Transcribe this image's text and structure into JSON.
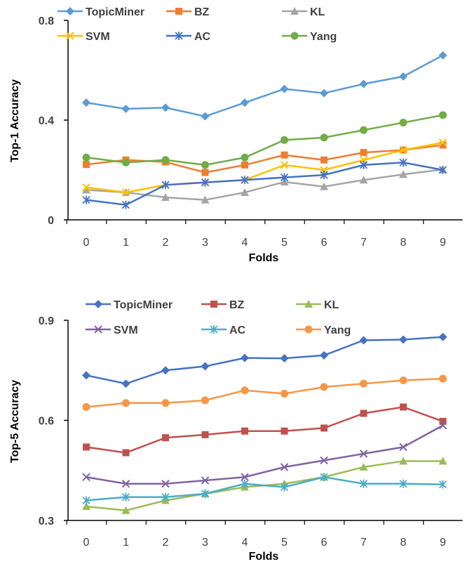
{
  "chart_data": [
    {
      "type": "line",
      "title": "",
      "xlabel": "Folds",
      "ylabel": "Top-1 Accuracy",
      "ylim": [
        0,
        0.8
      ],
      "yticks": [
        "0",
        "0.4",
        "0.8"
      ],
      "x": [
        0,
        1,
        2,
        3,
        4,
        5,
        6,
        7,
        8,
        9
      ],
      "legend": "top",
      "series": [
        {
          "name": "TopicMiner",
          "color": "#5B9BD5",
          "marker": "diamond",
          "values": [
            0.47,
            0.445,
            0.45,
            0.415,
            0.47,
            0.525,
            0.508,
            0.545,
            0.575,
            0.66
          ]
        },
        {
          "name": "BZ",
          "color": "#ED7D31",
          "marker": "square",
          "values": [
            0.222,
            0.24,
            0.232,
            0.19,
            0.22,
            0.26,
            0.24,
            0.27,
            0.28,
            0.3
          ]
        },
        {
          "name": "KL",
          "color": "#A5A5A5",
          "marker": "triangle",
          "values": [
            0.12,
            0.11,
            0.09,
            0.08,
            0.11,
            0.152,
            0.133,
            0.16,
            0.182,
            0.202
          ]
        },
        {
          "name": "SVM",
          "color": "#FFC000",
          "marker": "x",
          "values": [
            0.13,
            0.11,
            0.14,
            0.15,
            0.16,
            0.22,
            0.2,
            0.24,
            0.28,
            0.31
          ]
        },
        {
          "name": "AC",
          "color": "#4472C4",
          "marker": "star",
          "values": [
            0.08,
            0.06,
            0.14,
            0.15,
            0.16,
            0.17,
            0.18,
            0.22,
            0.23,
            0.2
          ]
        },
        {
          "name": "Yang",
          "color": "#70AD47",
          "marker": "circle",
          "values": [
            0.25,
            0.23,
            0.24,
            0.22,
            0.25,
            0.32,
            0.33,
            0.36,
            0.39,
            0.42
          ]
        }
      ]
    },
    {
      "type": "line",
      "title": "",
      "xlabel": "Folds",
      "ylabel": "Top-5 Accuracy",
      "ylim": [
        0.3,
        0.9
      ],
      "yticks": [
        "0.3",
        "0.6",
        "0.9"
      ],
      "x": [
        0,
        1,
        2,
        3,
        4,
        5,
        6,
        7,
        8,
        9
      ],
      "legend": "top",
      "series": [
        {
          "name": "TopicMiner",
          "color": "#4472C4",
          "marker": "diamond",
          "values": [
            0.735,
            0.71,
            0.75,
            0.762,
            0.787,
            0.786,
            0.795,
            0.84,
            0.842,
            0.85
          ]
        },
        {
          "name": "BZ",
          "color": "#C0504D",
          "marker": "square",
          "values": [
            0.52,
            0.503,
            0.548,
            0.557,
            0.568,
            0.568,
            0.577,
            0.621,
            0.64,
            0.597
          ]
        },
        {
          "name": "KL",
          "color": "#9BBB59",
          "marker": "triangle",
          "values": [
            0.342,
            0.33,
            0.36,
            0.38,
            0.4,
            0.41,
            0.43,
            0.46,
            0.478,
            0.478
          ]
        },
        {
          "name": "SVM",
          "color": "#8064A2",
          "marker": "x",
          "values": [
            0.43,
            0.41,
            0.41,
            0.42,
            0.43,
            0.46,
            0.48,
            0.5,
            0.52,
            0.585
          ]
        },
        {
          "name": "AC",
          "color": "#4BACC6",
          "marker": "star",
          "values": [
            0.36,
            0.37,
            0.37,
            0.38,
            0.41,
            0.4,
            0.43,
            0.41,
            0.41,
            0.408
          ]
        },
        {
          "name": "Yang",
          "color": "#F79646",
          "marker": "circle",
          "values": [
            0.64,
            0.652,
            0.652,
            0.66,
            0.69,
            0.68,
            0.7,
            0.71,
            0.72,
            0.725
          ]
        }
      ]
    }
  ]
}
